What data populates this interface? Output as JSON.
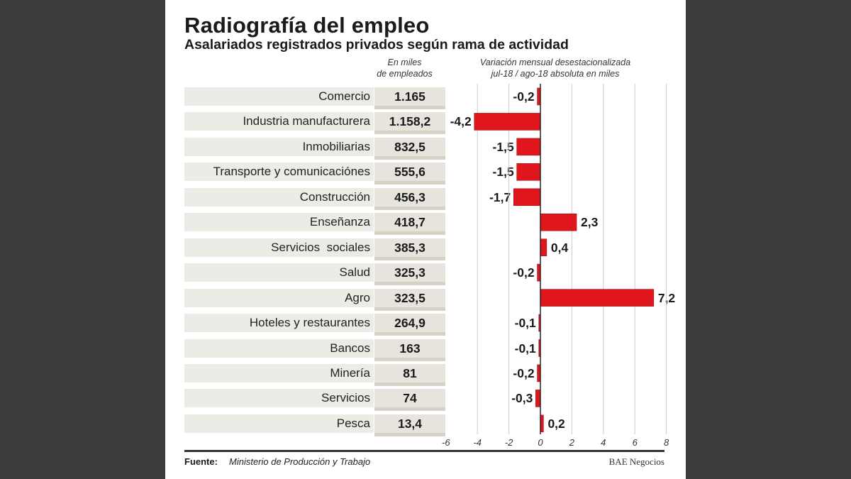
{
  "title": "Radiografía del empleo",
  "subtitle": "Asalariados registrados privados según rama de actividad",
  "column_headers": {
    "values": [
      "En miles",
      "de empleados"
    ],
    "variation": [
      "Variación mensual desestacionalizada",
      "jul-18 / ago-18 absoluta en miles"
    ]
  },
  "footer": {
    "source_label": "Fuente:",
    "source": "Ministerio de Producción y Trabajo",
    "brand": "BAE Negocios"
  },
  "colors": {
    "bar": "#e0161c",
    "background": "#3b3b3b"
  },
  "chart_data": {
    "type": "bar",
    "orientation": "horizontal",
    "categories": [
      "Comercio",
      "Industria manufacturera",
      "Inmobiliarias",
      "Transporte y comunicaciónes",
      "Construcción",
      "Enseñanza",
      "Servicios  sociales",
      "Salud",
      "Agro",
      "Hoteles y restaurantes",
      "Bancos",
      "Minería",
      "Servicios",
      "Pesca"
    ],
    "employees_label": [
      "1.165",
      "1.158,2",
      "832,5",
      "555,6",
      "456,3",
      "418,7",
      "385,3",
      "325,3",
      "323,5",
      "264,9",
      "163",
      "81",
      "74",
      "13,4"
    ],
    "values": [
      -0.2,
      -4.2,
      -1.5,
      -1.5,
      -1.7,
      2.3,
      0.4,
      -0.2,
      7.2,
      -0.1,
      -0.1,
      -0.2,
      -0.3,
      0.2
    ],
    "value_labels": [
      "-0,2",
      "-4,2",
      "-1,5",
      "-1,5",
      "-1,7",
      "2,3",
      "0,4",
      "-0,2",
      "7,2",
      "-0,1",
      "-0,1",
      "-0,2",
      "-0,3",
      "0,2"
    ],
    "xlim": [
      -6,
      8
    ],
    "xticks": [
      "-6",
      "-4",
      "-2",
      "0",
      "2",
      "4",
      "6",
      "8"
    ],
    "grid": true
  }
}
